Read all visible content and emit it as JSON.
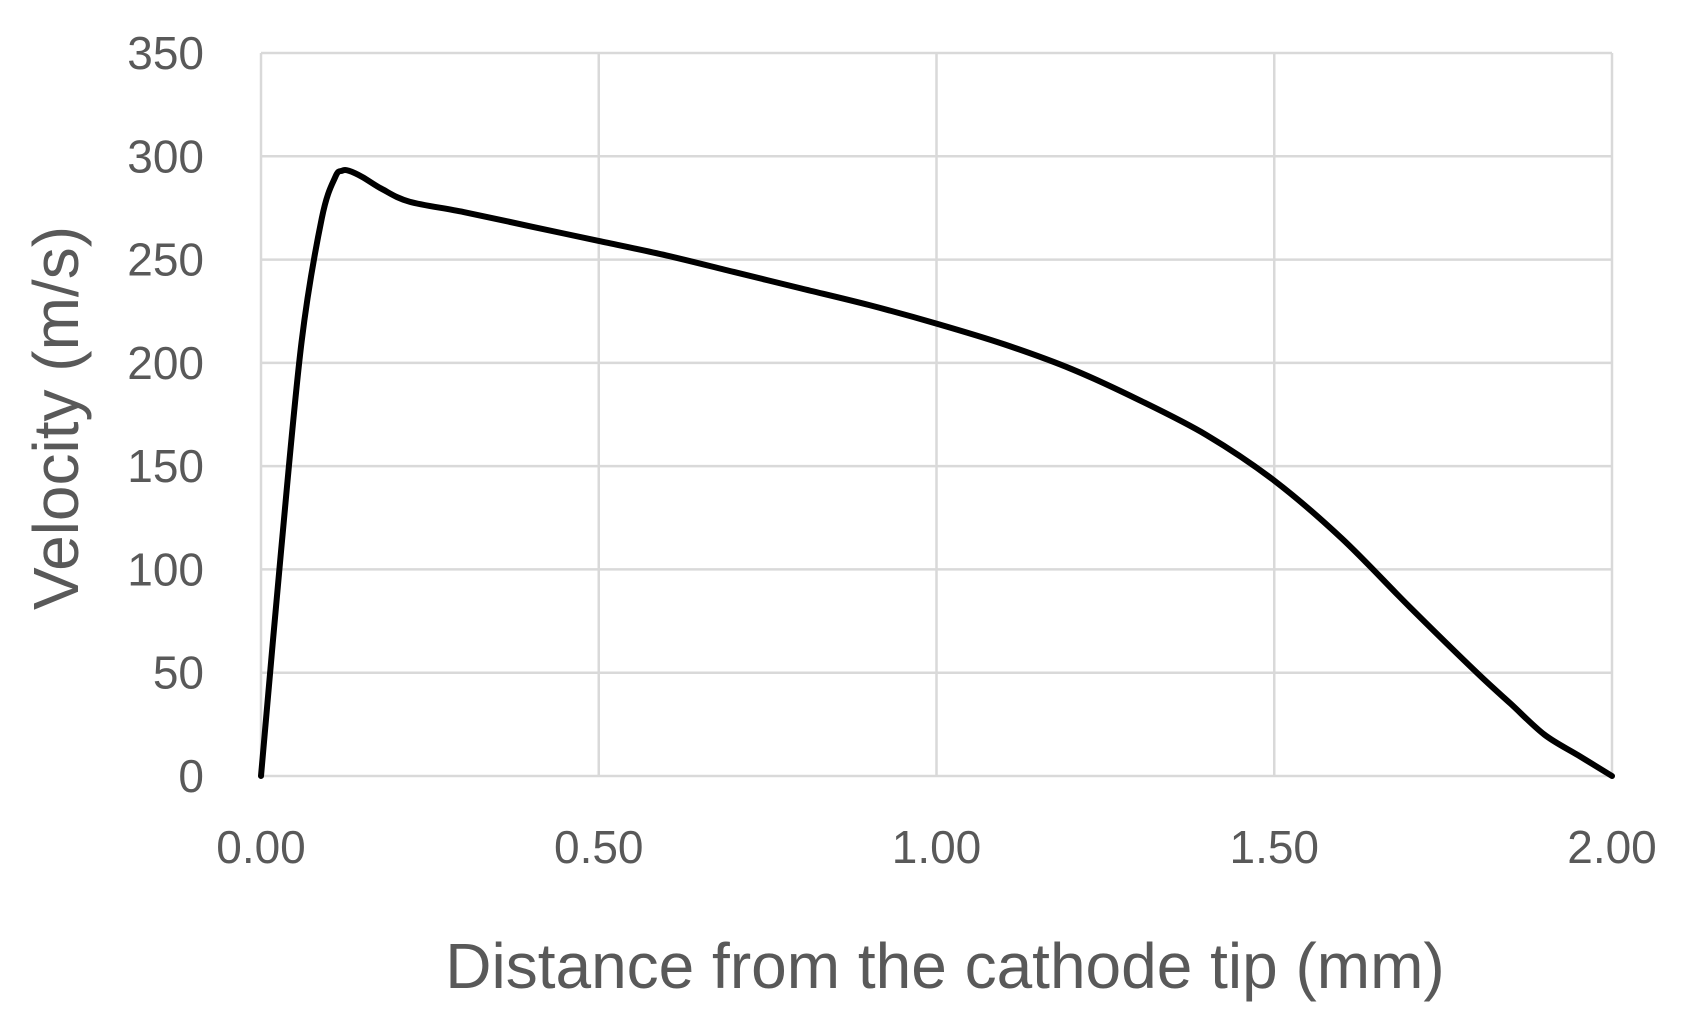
{
  "chart_data": {
    "type": "line",
    "xlabel": "Distance from the cathode tip (mm)",
    "ylabel": "Velocity (m/s)",
    "xlim": [
      0,
      2
    ],
    "ylim": [
      0,
      350
    ],
    "x_ticks": [
      "0.00",
      "0.50",
      "1.00",
      "1.50",
      "2.00"
    ],
    "y_ticks": [
      "0",
      "50",
      "100",
      "150",
      "200",
      "250",
      "300",
      "350"
    ],
    "x_tick_values": [
      0,
      0.5,
      1.0,
      1.5,
      2.0
    ],
    "y_tick_values": [
      0,
      50,
      100,
      150,
      200,
      250,
      300,
      350
    ],
    "grid": true,
    "legend": "none",
    "series": [
      {
        "color": "#000000",
        "x": [
          0.0,
          0.03,
          0.06,
          0.09,
          0.11,
          0.12,
          0.13,
          0.15,
          0.18,
          0.22,
          0.3,
          0.4,
          0.5,
          0.6,
          0.7,
          0.8,
          0.9,
          1.0,
          1.1,
          1.2,
          1.3,
          1.4,
          1.5,
          1.6,
          1.7,
          1.8,
          1.85,
          1.9,
          1.95,
          2.0
        ],
        "y": [
          0,
          110,
          210,
          270,
          290,
          293,
          293,
          290,
          284,
          278,
          273,
          266,
          259,
          252,
          244,
          236,
          228,
          219,
          209,
          197,
          182,
          165,
          143,
          115,
          82,
          50,
          35,
          20,
          10,
          0
        ]
      }
    ]
  }
}
